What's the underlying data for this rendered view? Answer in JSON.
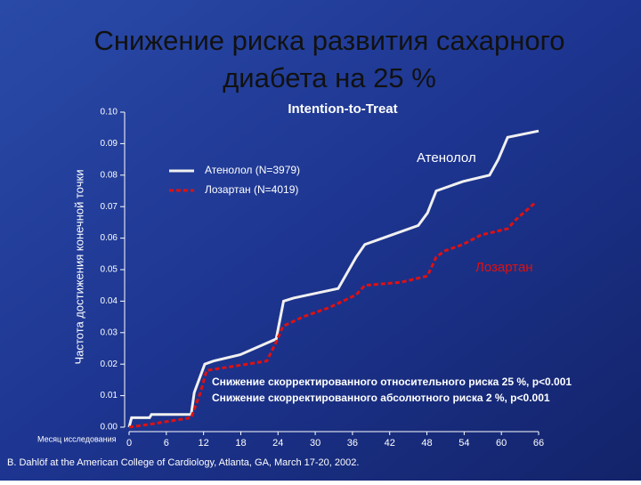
{
  "chart_data": {
    "type": "line",
    "title_lines": [
      "Снижение риска развития сахарного",
      "диабета на 25 %"
    ],
    "subtitle": "Intention-to-Treat",
    "ylabel": "Частота достижения конечной точки",
    "xlabel": "Месяц исследования",
    "source": "B. Dahlöf at the American College of Cardiology, Atlanta, GA, March 17-20, 2002.",
    "annotations": [
      "Атенолол",
      "Лозартан",
      "Снижение скорректированного относительного риска 25 %, p<0.001",
      "Снижение скорректированного абсолютного риска  2 %, p<0.001"
    ],
    "legend": "upper left",
    "xlim": [
      0,
      66
    ],
    "xticks": [
      0,
      6,
      12,
      18,
      24,
      30,
      36,
      42,
      48,
      54,
      60,
      66
    ],
    "ylim": [
      0,
      0.1
    ],
    "yticks": [
      {
        "value": 0,
        "label": "0.00"
      },
      {
        "value": 0.01,
        "label": "0.01"
      },
      {
        "value": 0.02,
        "label": "0.02"
      },
      {
        "value": 0.03,
        "label": "0.03"
      },
      {
        "value": 0.04,
        "label": "0.04"
      },
      {
        "value": 0.05,
        "label": "0.05"
      },
      {
        "value": 0.06,
        "label": "0.06"
      },
      {
        "value": 0.07,
        "label": "0.07"
      },
      {
        "value": 0.08,
        "label": "0.08"
      },
      {
        "value": 0.09,
        "label": "0.09"
      },
      {
        "value": 0.1,
        "label": "0.10"
      }
    ],
    "series": [
      {
        "name": "Атенолол (N=3979)",
        "color": "#f0f0f0",
        "dash": false,
        "x": [
          0,
          0.4,
          3.3,
          3.6,
          10,
          10.5,
          12.2,
          13.6,
          17.9,
          23.7,
          24.9,
          26.5,
          33.7,
          36.6,
          38,
          42.3,
          46.6,
          48.1,
          49.5,
          53.8,
          58.1,
          59.5,
          61,
          66
        ],
        "values": [
          0,
          0.003,
          0.003,
          0.004,
          0.004,
          0.011,
          0.02,
          0.021,
          0.023,
          0.028,
          0.04,
          0.041,
          0.044,
          0.054,
          0.058,
          0.061,
          0.064,
          0.068,
          0.075,
          0.078,
          0.08,
          0.085,
          0.092,
          0.094
        ]
      },
      {
        "name": "Лозартан (N=4019)",
        "color": "#e01010",
        "dash": true,
        "x": [
          0,
          3.6,
          10,
          11.5,
          12.5,
          22.2,
          23.7,
          24.8,
          28,
          32.3,
          36.6,
          38,
          43.8,
          48.1,
          49.5,
          50.9,
          53.8,
          56.7,
          61,
          62.4,
          65.3
        ],
        "values": [
          0,
          0.001,
          0.003,
          0.011,
          0.018,
          0.021,
          0.027,
          0.032,
          0.035,
          0.038,
          0.042,
          0.045,
          0.046,
          0.048,
          0.054,
          0.056,
          0.058,
          0.061,
          0.063,
          0.066,
          0.071
        ]
      }
    ]
  }
}
